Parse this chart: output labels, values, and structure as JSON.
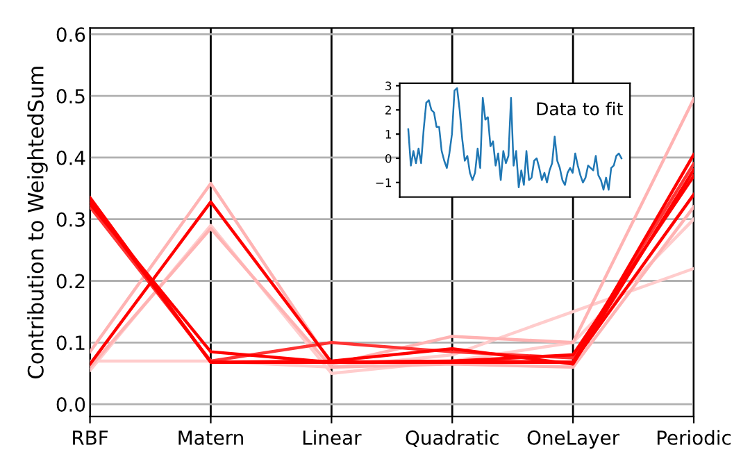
{
  "chart_data": [
    {
      "type": "line",
      "ylabel": "Contribution to WeightedSum",
      "categories": [
        "RBF",
        "Matern",
        "Linear",
        "Quadratic",
        "OneLayer",
        "Periodic"
      ],
      "ylim": [
        -0.02,
        0.61
      ],
      "yticks": [
        {
          "value": 0,
          "label": "0.0"
        },
        0.1,
        0.2,
        0.3,
        0.4,
        0.5,
        0.6
      ],
      "grid": true,
      "legend": false,
      "series": [
        {
          "color": "#ffcccc",
          "values": [
            0.07,
            0.07,
            0.06,
            0.08,
            0.15,
            0.22
          ]
        },
        {
          "color": "#ffcccc",
          "values": [
            0.055,
            0.29,
            0.05,
            0.07,
            0.1,
            0.3
          ]
        },
        {
          "color": "#ffb3b3",
          "values": [
            0.06,
            0.285,
            0.06,
            0.065,
            0.06,
            0.32
          ]
        },
        {
          "color": "#ffb3b3",
          "values": [
            0.085,
            0.358,
            0.065,
            0.11,
            0.1,
            0.495
          ]
        },
        {
          "color": "#ff3333",
          "values": [
            0.32,
            0.07,
            0.1,
            0.085,
            0.075,
            0.39
          ]
        },
        {
          "color": "#ff0000",
          "values": [
            0.335,
            0.068,
            0.068,
            0.068,
            0.068,
            0.405
          ]
        },
        {
          "color": "#ff0000",
          "values": [
            0.33,
            0.068,
            0.07,
            0.09,
            0.065,
            0.38
          ]
        },
        {
          "color": "#ff0000",
          "values": [
            0.325,
            0.085,
            0.068,
            0.07,
            0.08,
            0.37
          ]
        },
        {
          "color": "#ff0000",
          "values": [
            0.065,
            0.328,
            0.068,
            0.07,
            0.068,
            0.34
          ]
        }
      ]
    },
    {
      "type": "line",
      "annotations": [
        "Data to fit"
      ],
      "tick_labels": "y",
      "categories": [
        null,
        null,
        null,
        null,
        null,
        null,
        null,
        null,
        null,
        null,
        null,
        null,
        null,
        null,
        null,
        null,
        null,
        null,
        null,
        null,
        null,
        null,
        null,
        null,
        null,
        null,
        null,
        null,
        null,
        null,
        null,
        null,
        null,
        null,
        null,
        null,
        null,
        null,
        null,
        null,
        null,
        null,
        null,
        null,
        null,
        null,
        null,
        null,
        null,
        null,
        null,
        null,
        null,
        null,
        null,
        null,
        null,
        null,
        null,
        null,
        null,
        null,
        null,
        null,
        null,
        null,
        null,
        null,
        null,
        null,
        null,
        null,
        null,
        null,
        null,
        null,
        null,
        null,
        null,
        null,
        null,
        null,
        null,
        null
      ],
      "ylim": [
        -1.6,
        3.1
      ],
      "yticks": [
        {
          "value": -1,
          "label": "−1"
        },
        0,
        1,
        2,
        3
      ],
      "series": [
        {
          "color": "#1f77b4",
          "values": [
            1.2,
            -0.3,
            0.3,
            -0.2,
            0.4,
            -0.2,
            1.2,
            2.3,
            2.4,
            2.0,
            1.9,
            1.3,
            1.3,
            0.3,
            -0.1,
            -0.4,
            0.2,
            1.0,
            2.8,
            2.9,
            2.0,
            0.8,
            -0.1,
            0.1,
            -0.6,
            -0.9,
            -0.6,
            0.4,
            -0.4,
            2.5,
            1.6,
            1.7,
            0.5,
            0.7,
            -0.3,
            0.2,
            -0.9,
            0.3,
            -0.2,
            0.1,
            2.5,
            -0.3,
            0.3,
            -1.2,
            -0.5,
            -1.1,
            0.3,
            -0.9,
            -0.8,
            -0.1,
            0.0,
            -0.4,
            -0.9,
            -0.6,
            -1.0,
            -0.5,
            -0.2,
            0.9,
            -0.1,
            -0.4,
            -0.9,
            -1.1,
            -0.6,
            -0.4,
            -0.6,
            0.2,
            -0.3,
            -0.7,
            -1.0,
            -0.8,
            -0.3,
            -0.4,
            -0.5,
            0.1,
            -0.7,
            -0.9,
            -1.3,
            -0.8,
            -1.3,
            -0.4,
            -0.3,
            0.1,
            0.2,
            0.0
          ]
        }
      ]
    }
  ]
}
